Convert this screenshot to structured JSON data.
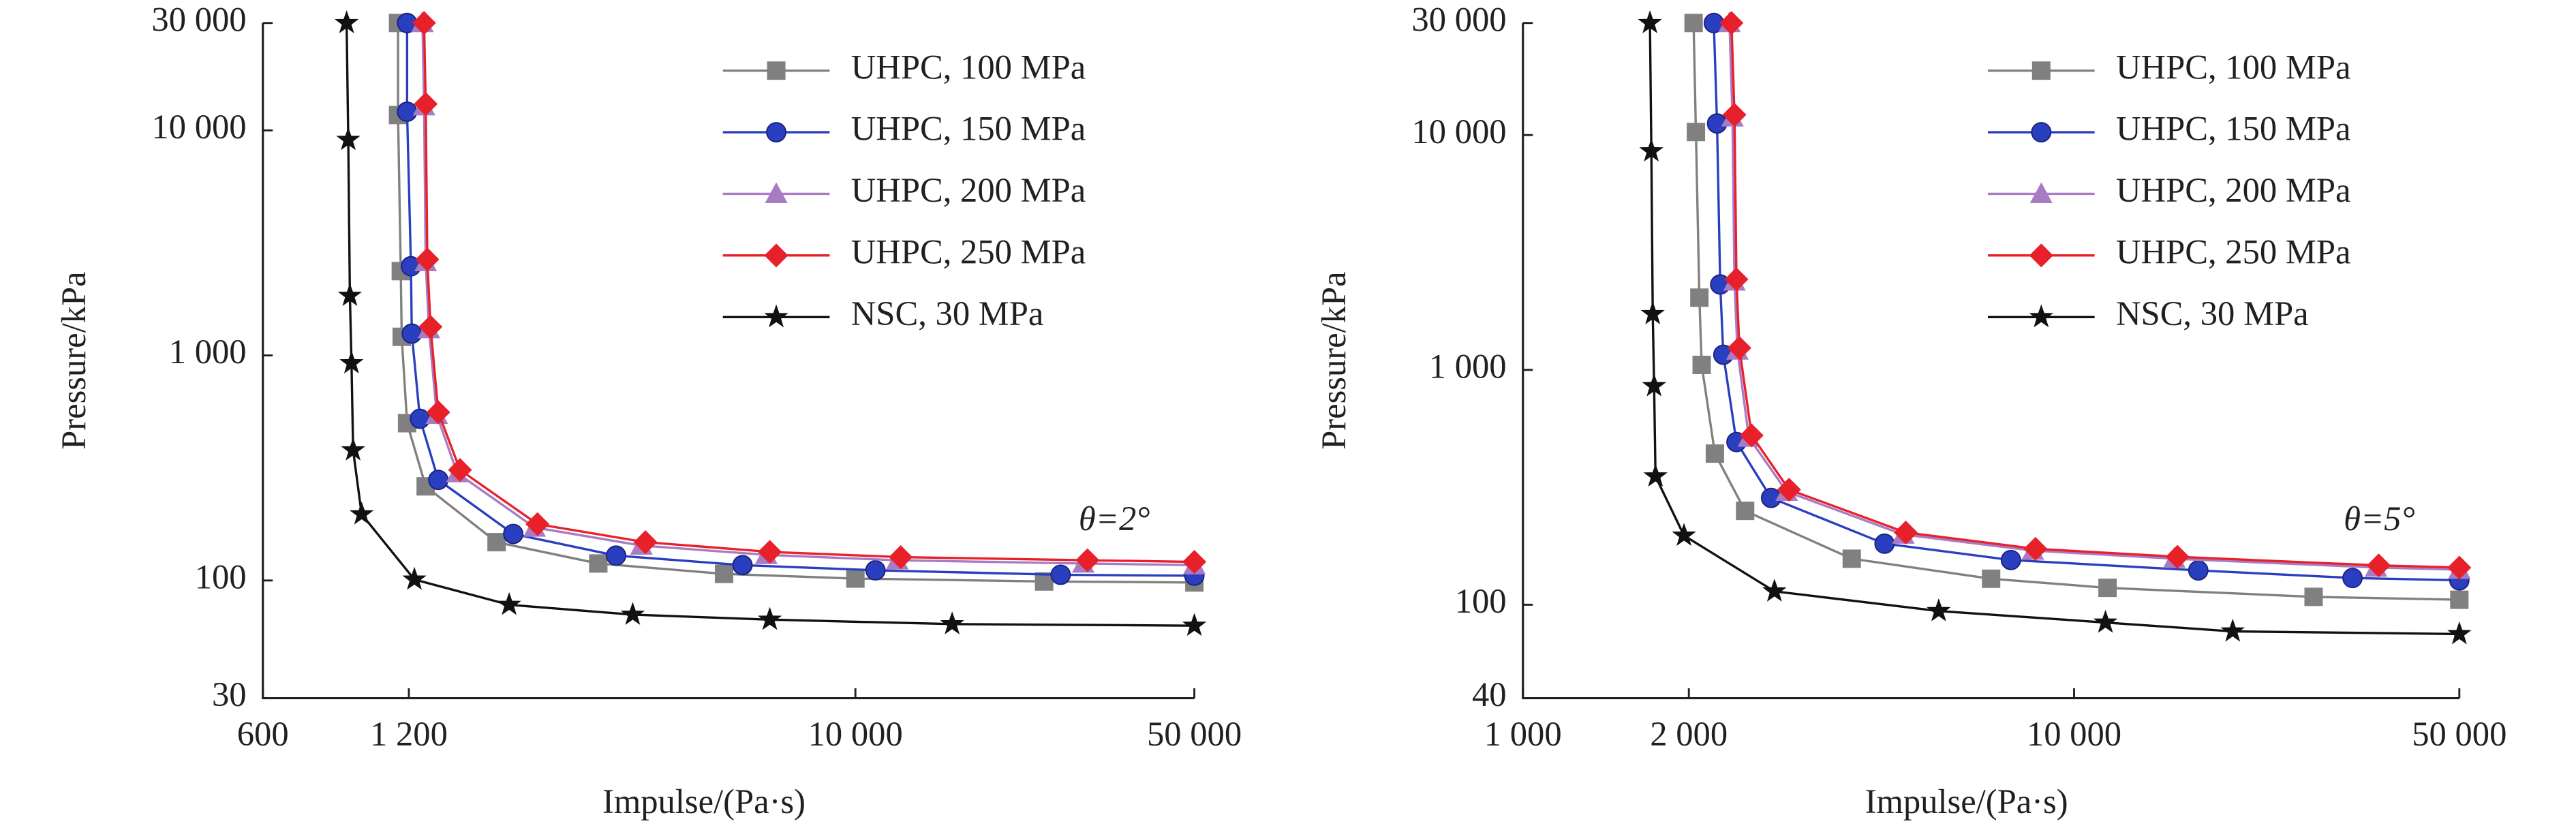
{
  "chart_data": [
    {
      "type": "line",
      "xlabel": "Impulse/(Pa·s)",
      "ylabel": "Pressure/kPa",
      "annotation": "θ=2°",
      "xscale": "log",
      "yscale": "log",
      "legend": "upper right",
      "xlim": [
        600,
        50000
      ],
      "xticks": [
        600,
        {
          "value": 1200,
          "label": "1 200"
        },
        {
          "value": 10000,
          "label": "10 000"
        },
        {
          "value": 50000,
          "label": "50 000"
        }
      ],
      "ylim": [
        30,
        30000
      ],
      "yticks": [
        30,
        100,
        {
          "value": 1000,
          "label": "1 000"
        },
        {
          "value": 10000,
          "label": "10 000"
        },
        {
          "value": 30000,
          "label": "30 000"
        }
      ],
      "series": [
        {
          "name": "UHPC, 100 MPa",
          "color": "#808080",
          "marker": "square",
          "x": [
            1140,
            1140,
            1155,
            1160,
            1190,
            1300,
            1820,
            2950,
            5360,
            10000,
            24500,
            50000
          ],
          "values": [
            30000,
            11700,
            2370,
            1210,
            500,
            262,
            148,
            119,
            107,
            102,
            99,
            98
          ]
        },
        {
          "name": "UHPC, 150 MPa",
          "color": "#2a3fc0",
          "marker": "circle",
          "x": [
            1190,
            1190,
            1212,
            1217,
            1265,
            1380,
            1970,
            3210,
            5850,
            11000,
            26500,
            50000
          ],
          "values": [
            30000,
            12100,
            2490,
            1250,
            523,
            280,
            161,
            129,
            117,
            111,
            106,
            105
          ]
        },
        {
          "name": "UHPC, 200 MPa",
          "color": "#a97bc4",
          "marker": "triangle",
          "x": [
            1280,
            1290,
            1300,
            1320,
            1370,
            1510,
            2180,
            3620,
            6550,
            12200,
            29500,
            50000
          ],
          "values": [
            30000,
            12800,
            2600,
            1310,
            545,
            300,
            172,
            143,
            130,
            123,
            119,
            117
          ]
        },
        {
          "name": "UHPC, 250 MPa",
          "color": "#e8202a",
          "marker": "diamond",
          "x": [
            1290,
            1300,
            1310,
            1330,
            1380,
            1530,
            2210,
            3690,
            6660,
            12400,
            30100,
            50000
          ],
          "values": [
            30000,
            13100,
            2670,
            1340,
            559,
            310,
            178,
            148,
            134,
            127,
            123,
            121
          ]
        },
        {
          "name": "NSC, 30 MPa",
          "color": "#111111",
          "marker": "star",
          "x": [
            893,
            900,
            907,
            914,
            921,
            959,
            1232,
            1932,
            3474,
            6660,
            15830,
            50000
          ],
          "values": [
            30000,
            9080,
            1842,
            924,
            379,
            197,
            101,
            78,
            70.5,
            67,
            64,
            63
          ]
        }
      ]
    },
    {
      "type": "line",
      "xlabel": "Impulse/(Pa·s)",
      "ylabel": "Pressure/kPa",
      "annotation": "θ=5°",
      "xscale": "log",
      "yscale": "log",
      "legend": "upper right",
      "xlim": [
        1000,
        50000
      ],
      "xticks": [
        {
          "value": 1000,
          "label": "1 000"
        },
        {
          "value": 2000,
          "label": "2 000"
        },
        {
          "value": 10000,
          "label": "10 000"
        },
        {
          "value": 50000,
          "label": "50 000"
        }
      ],
      "ylim": [
        40,
        30000
      ],
      "yticks": [
        40,
        100,
        {
          "value": 1000,
          "label": "1 000"
        },
        {
          "value": 10000,
          "label": "10 000"
        },
        {
          "value": 30000,
          "label": "30 000"
        }
      ],
      "series": [
        {
          "name": "UHPC, 100 MPa",
          "color": "#808080",
          "marker": "square",
          "x": [
            2040,
            2060,
            2090,
            2110,
            2230,
            2530,
            3950,
            7070,
            11500,
            27200,
            50000
          ],
          "values": [
            30000,
            10300,
            2030,
            1050,
            440,
            251,
            157,
            129,
            118,
            108,
            105
          ]
        },
        {
          "name": "UHPC, 150 MPa",
          "color": "#2a3fc0",
          "marker": "circle",
          "x": [
            2220,
            2250,
            2280,
            2310,
            2440,
            2820,
            4530,
            7680,
            16800,
            32000,
            50000
          ],
          "values": [
            30000,
            11200,
            2310,
            1160,
            493,
            285,
            182,
            155,
            140,
            130,
            127
          ]
        },
        {
          "name": "UHPC, 200 MPa",
          "color": "#a97bc4",
          "marker": "triangle",
          "x": [
            2370,
            2400,
            2420,
            2450,
            2570,
            3010,
            4900,
            8420,
            15200,
            35300,
            50000
          ],
          "values": [
            30000,
            11900,
            2380,
            1210,
            515,
            303,
            199,
            170,
            157,
            144,
            141
          ]
        },
        {
          "name": "UHPC, 250 MPa",
          "color": "#e8202a",
          "marker": "diamond",
          "x": [
            2390,
            2420,
            2440,
            2470,
            2600,
            3040,
            4950,
            8510,
            15400,
            35700,
            50000
          ],
          "values": [
            30000,
            12200,
            2430,
            1240,
            526,
            309,
            203,
            173,
            160,
            147,
            144
          ]
        },
        {
          "name": "NSC, 30 MPa",
          "color": "#111111",
          "marker": "star",
          "x": [
            1700,
            1710,
            1720,
            1730,
            1740,
            1960,
            2860,
            5680,
            11400,
            19400,
            50000
          ],
          "values": [
            30000,
            8530,
            1730,
            853,
            352,
            197,
            114,
            94,
            84,
            77,
            75
          ]
        }
      ]
    }
  ]
}
